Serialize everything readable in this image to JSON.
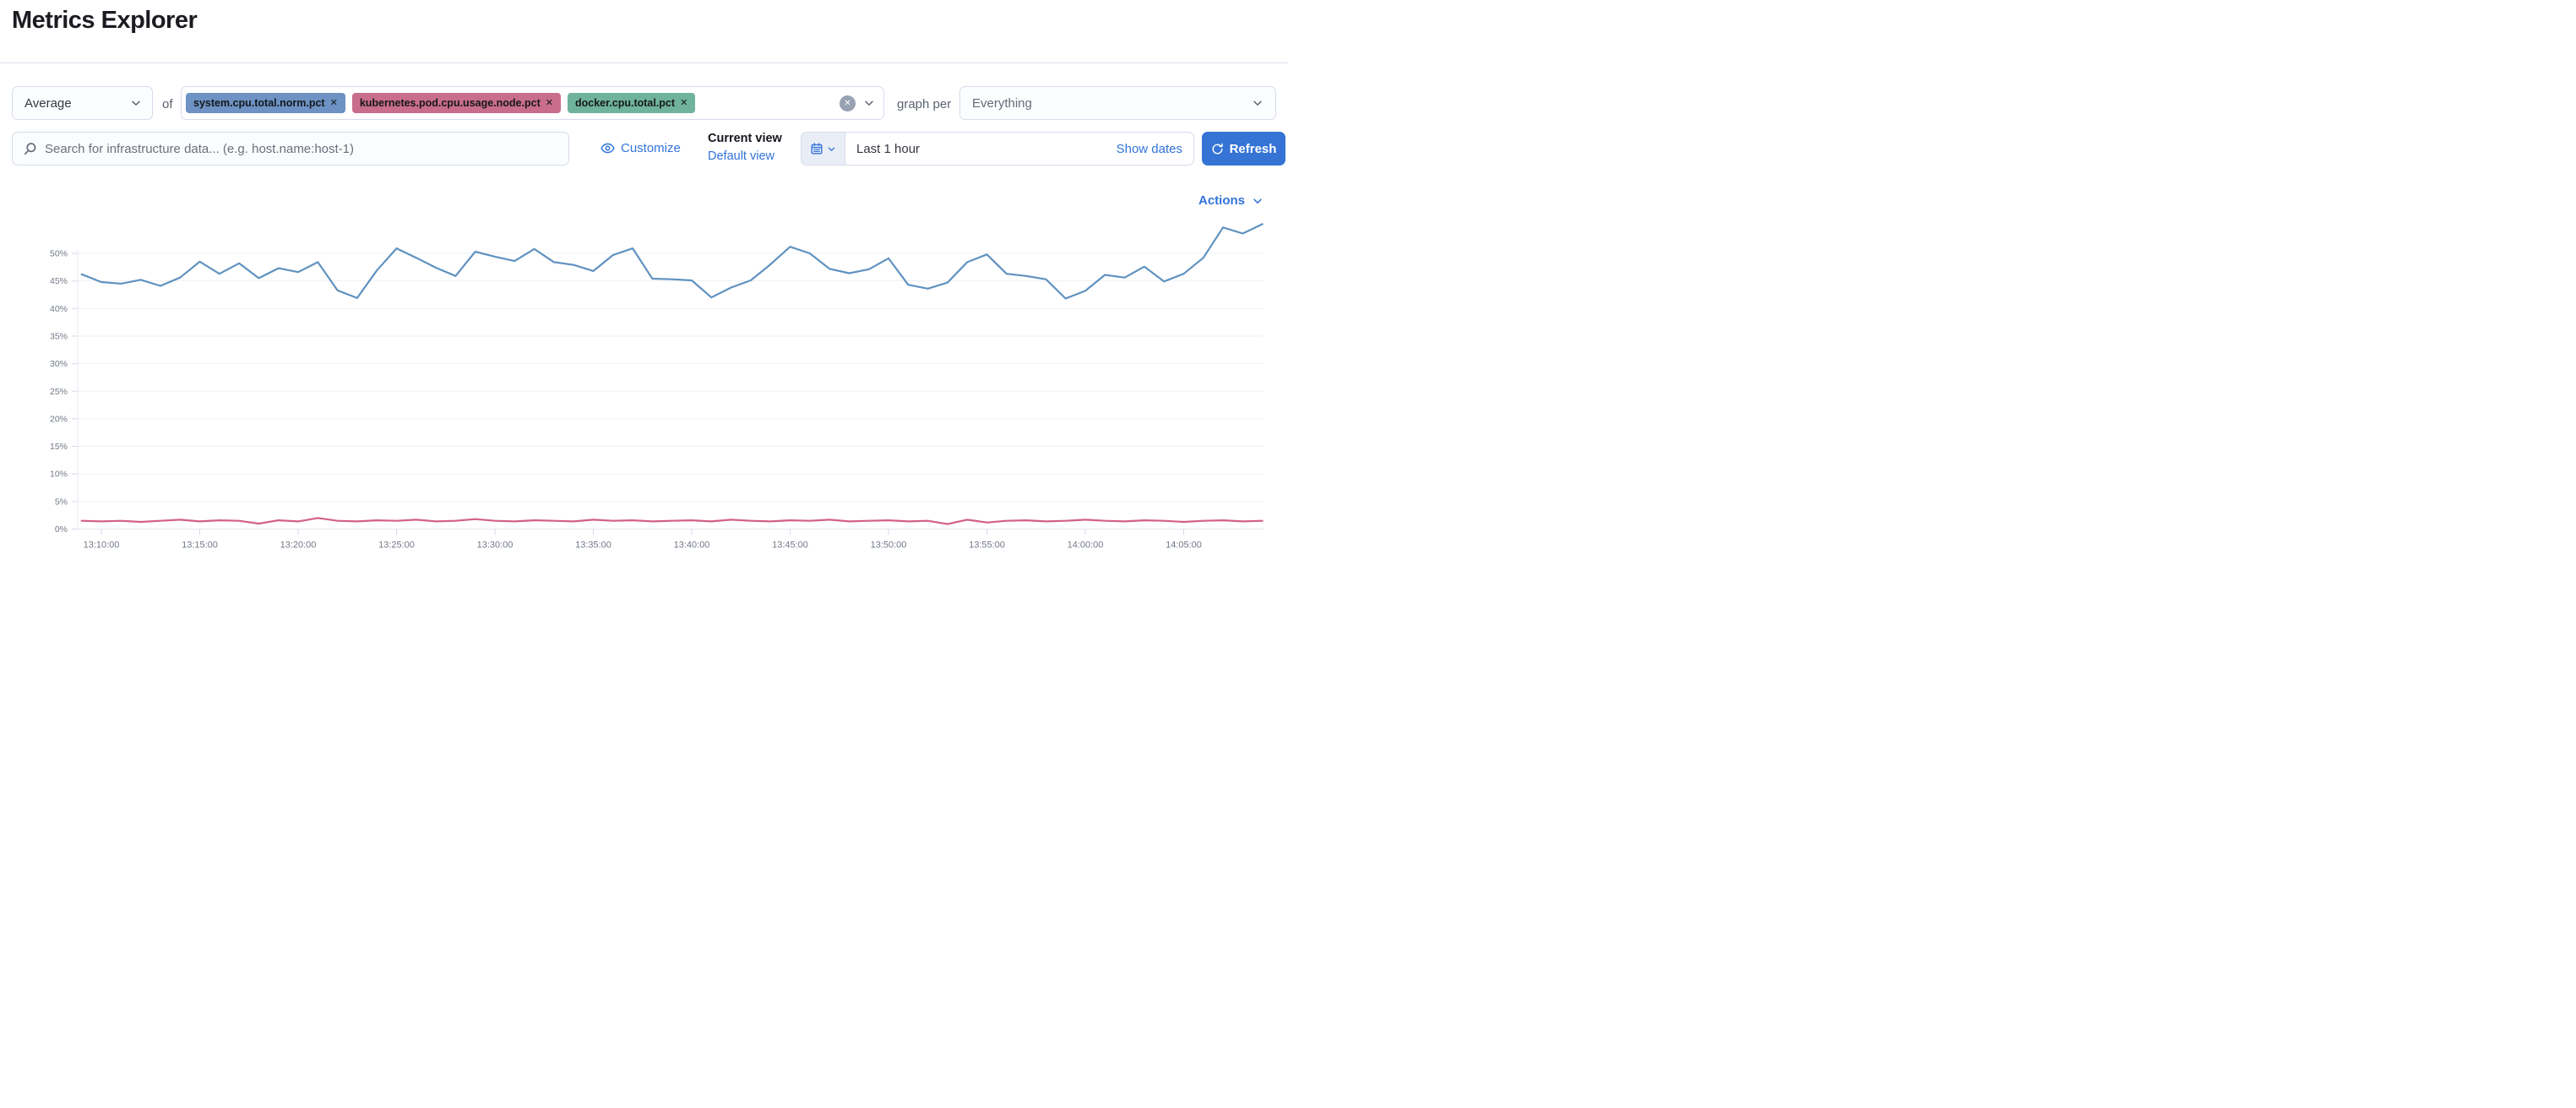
{
  "page": {
    "title": "Metrics Explorer"
  },
  "toolbar": {
    "aggregation": {
      "value": "Average"
    },
    "of_label": "of",
    "metrics": [
      {
        "label": "system.cpu.total.norm.pct",
        "remove_label": "✕",
        "color": "#6d92c3"
      },
      {
        "label": "kubernetes.pod.cpu.usage.node.pct",
        "remove_label": "✕",
        "color": "#c96d8c"
      },
      {
        "label": "docker.cpu.total.pct",
        "remove_label": "✕",
        "color": "#6fb39c"
      }
    ],
    "clear_all_label": "✕",
    "graph_per_label": "graph per",
    "group_by": {
      "value": "Everything"
    }
  },
  "search": {
    "placeholder": "Search for infrastructure data... (e.g. host.name:host-1)"
  },
  "view_controls": {
    "customize_label": "Customize",
    "current_view_label": "Current view",
    "default_view_label": "Default view"
  },
  "time_controls": {
    "range_label": "Last 1 hour",
    "show_dates_label": "Show dates",
    "refresh_label": "Refresh"
  },
  "actions": {
    "label": "Actions"
  },
  "chart_data": {
    "type": "line",
    "title": "",
    "xlabel": "",
    "ylabel": "",
    "grid": true,
    "legend": false,
    "ylim": [
      0,
      56
    ],
    "y_tick_labels": [
      "0%",
      "5%",
      "10%",
      "15%",
      "20%",
      "25%",
      "30%",
      "35%",
      "40%",
      "45%",
      "50%"
    ],
    "x_tick_labels": [
      "13:10:00",
      "13:15:00",
      "13:20:00",
      "13:25:00",
      "13:30:00",
      "13:35:00",
      "13:40:00",
      "13:45:00",
      "13:50:00",
      "13:55:00",
      "14:00:00",
      "14:05:00"
    ],
    "x": [
      "13:09:00",
      "13:10:00",
      "13:11:00",
      "13:12:00",
      "13:13:00",
      "13:14:00",
      "13:15:00",
      "13:16:00",
      "13:17:00",
      "13:18:00",
      "13:19:00",
      "13:20:00",
      "13:21:00",
      "13:22:00",
      "13:23:00",
      "13:24:00",
      "13:25:00",
      "13:26:00",
      "13:27:00",
      "13:28:00",
      "13:29:00",
      "13:30:00",
      "13:31:00",
      "13:32:00",
      "13:33:00",
      "13:34:00",
      "13:35:00",
      "13:36:00",
      "13:37:00",
      "13:38:00",
      "13:39:00",
      "13:40:00",
      "13:41:00",
      "13:42:00",
      "13:43:00",
      "13:44:00",
      "13:45:00",
      "13:46:00",
      "13:47:00",
      "13:48:00",
      "13:49:00",
      "13:50:00",
      "13:51:00",
      "13:52:00",
      "13:53:00",
      "13:54:00",
      "13:55:00",
      "13:56:00",
      "13:57:00",
      "13:58:00",
      "13:59:00",
      "14:00:00",
      "14:01:00",
      "14:02:00",
      "14:03:00",
      "14:04:00",
      "14:05:00",
      "14:06:00",
      "14:07:00",
      "14:08:00",
      "14:09:00"
    ],
    "series": [
      {
        "name": "system.cpu.total.norm.pct",
        "color": "#6092C0",
        "unit": "%",
        "values": [
          46.2,
          44.8,
          44.5,
          45.2,
          44.1,
          45.6,
          48.5,
          46.3,
          48.2,
          45.5,
          47.3,
          46.6,
          48.4,
          43.3,
          41.9,
          46.9,
          50.9,
          49.2,
          47.4,
          45.9,
          50.3,
          49.4,
          48.6,
          50.8,
          48.4,
          47.9,
          46.8,
          49.7,
          50.9,
          45.4,
          45.3,
          45.1,
          42.0,
          43.8,
          45.1,
          48.0,
          51.2,
          50.0,
          47.2,
          46.4,
          47.1,
          49.1,
          44.3,
          43.6,
          44.7,
          48.4,
          49.8,
          46.3,
          45.9,
          45.3,
          41.8,
          43.2,
          46.1,
          45.6,
          47.6,
          44.9,
          46.3,
          49.2,
          54.7,
          53.6,
          55.3
        ]
      },
      {
        "name": "kubernetes.pod.cpu.usage.node.pct",
        "color": "#D36086",
        "unit": "%",
        "values": [
          1.5,
          1.4,
          1.5,
          1.3,
          1.5,
          1.7,
          1.4,
          1.6,
          1.5,
          1.0,
          1.6,
          1.4,
          2.0,
          1.5,
          1.4,
          1.6,
          1.5,
          1.7,
          1.4,
          1.5,
          1.8,
          1.5,
          1.4,
          1.6,
          1.5,
          1.4,
          1.7,
          1.5,
          1.6,
          1.4,
          1.5,
          1.6,
          1.4,
          1.7,
          1.5,
          1.4,
          1.6,
          1.5,
          1.7,
          1.4,
          1.5,
          1.6,
          1.4,
          1.5,
          0.9,
          1.7,
          1.2,
          1.5,
          1.6,
          1.4,
          1.5,
          1.7,
          1.5,
          1.4,
          1.6,
          1.5,
          1.3,
          1.5,
          1.6,
          1.4,
          1.5
        ]
      }
    ]
  }
}
